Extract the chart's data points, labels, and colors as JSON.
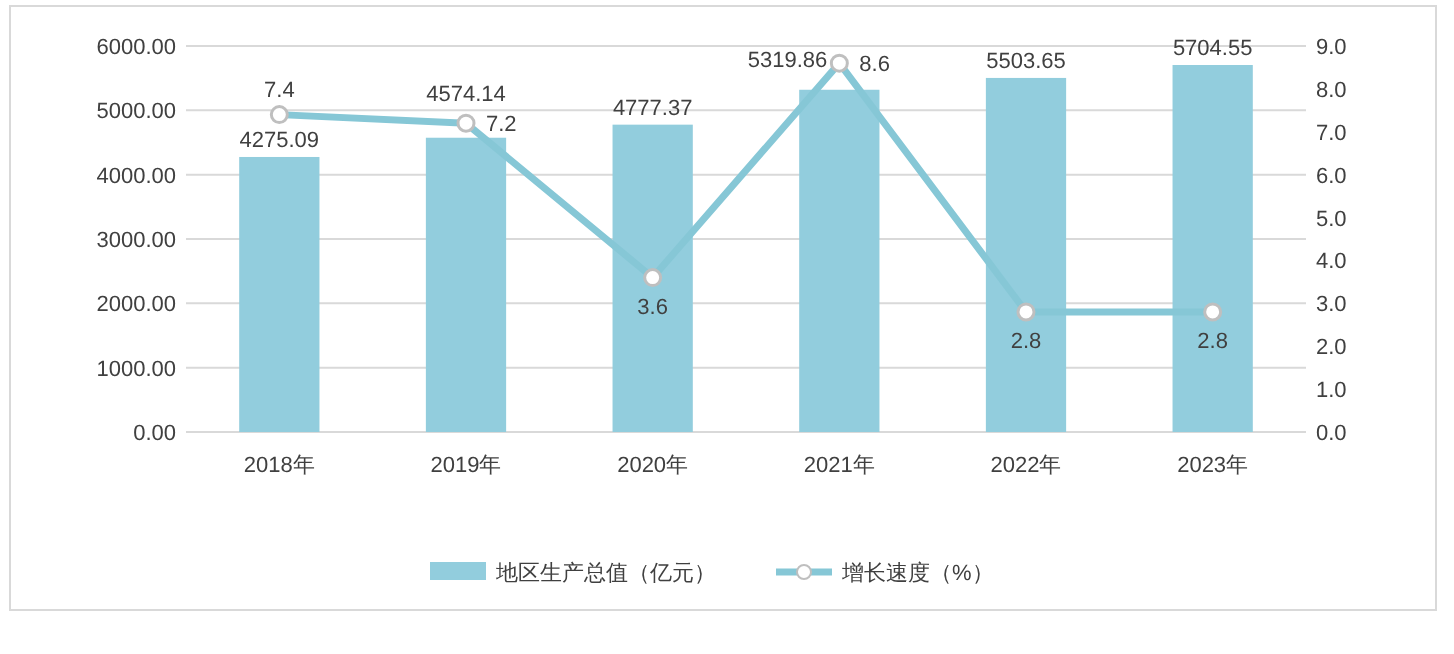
{
  "chart_data": {
    "type": "bar",
    "categories": [
      "2018年",
      "2019年",
      "2020年",
      "2021年",
      "2022年",
      "2023年"
    ],
    "series": [
      {
        "name": "地区生产总值（亿元）",
        "color": "#92cddd",
        "values": [
          4275.09,
          4574.14,
          4777.37,
          5319.86,
          5503.65,
          5704.55
        ]
      },
      {
        "name": "增长速度（%）",
        "type": "line",
        "axis": "y2",
        "color": "#86c7d6",
        "values": [
          7.4,
          7.2,
          3.6,
          8.6,
          2.8,
          2.8
        ]
      }
    ],
    "ylim": [
      0,
      6000
    ],
    "yticks": [
      {
        "value": 0,
        "label": "0.00"
      },
      {
        "value": 1000,
        "label": "1000.00"
      },
      {
        "value": 2000,
        "label": "2000.00"
      },
      {
        "value": 3000,
        "label": "3000.00"
      },
      {
        "value": 4000,
        "label": "4000.00"
      },
      {
        "value": 5000,
        "label": "5000.00"
      },
      {
        "value": 6000,
        "label": "6000.00"
      }
    ],
    "y2lim": [
      0,
      9
    ],
    "y2ticks": [
      {
        "value": 0,
        "label": "0.0"
      },
      {
        "value": 1,
        "label": "1.0"
      },
      {
        "value": 2,
        "label": "2.0"
      },
      {
        "value": 3,
        "label": "3.0"
      },
      {
        "value": 4,
        "label": "4.0"
      },
      {
        "value": 5,
        "label": "5.0"
      },
      {
        "value": 6,
        "label": "6.0"
      },
      {
        "value": 7,
        "label": "7.0"
      },
      {
        "value": 8,
        "label": "8.0"
      },
      {
        "value": 9,
        "label": "9.0"
      }
    ],
    "grid": "y",
    "legend": "bottom",
    "marker": "circle",
    "data_labels": true
  }
}
